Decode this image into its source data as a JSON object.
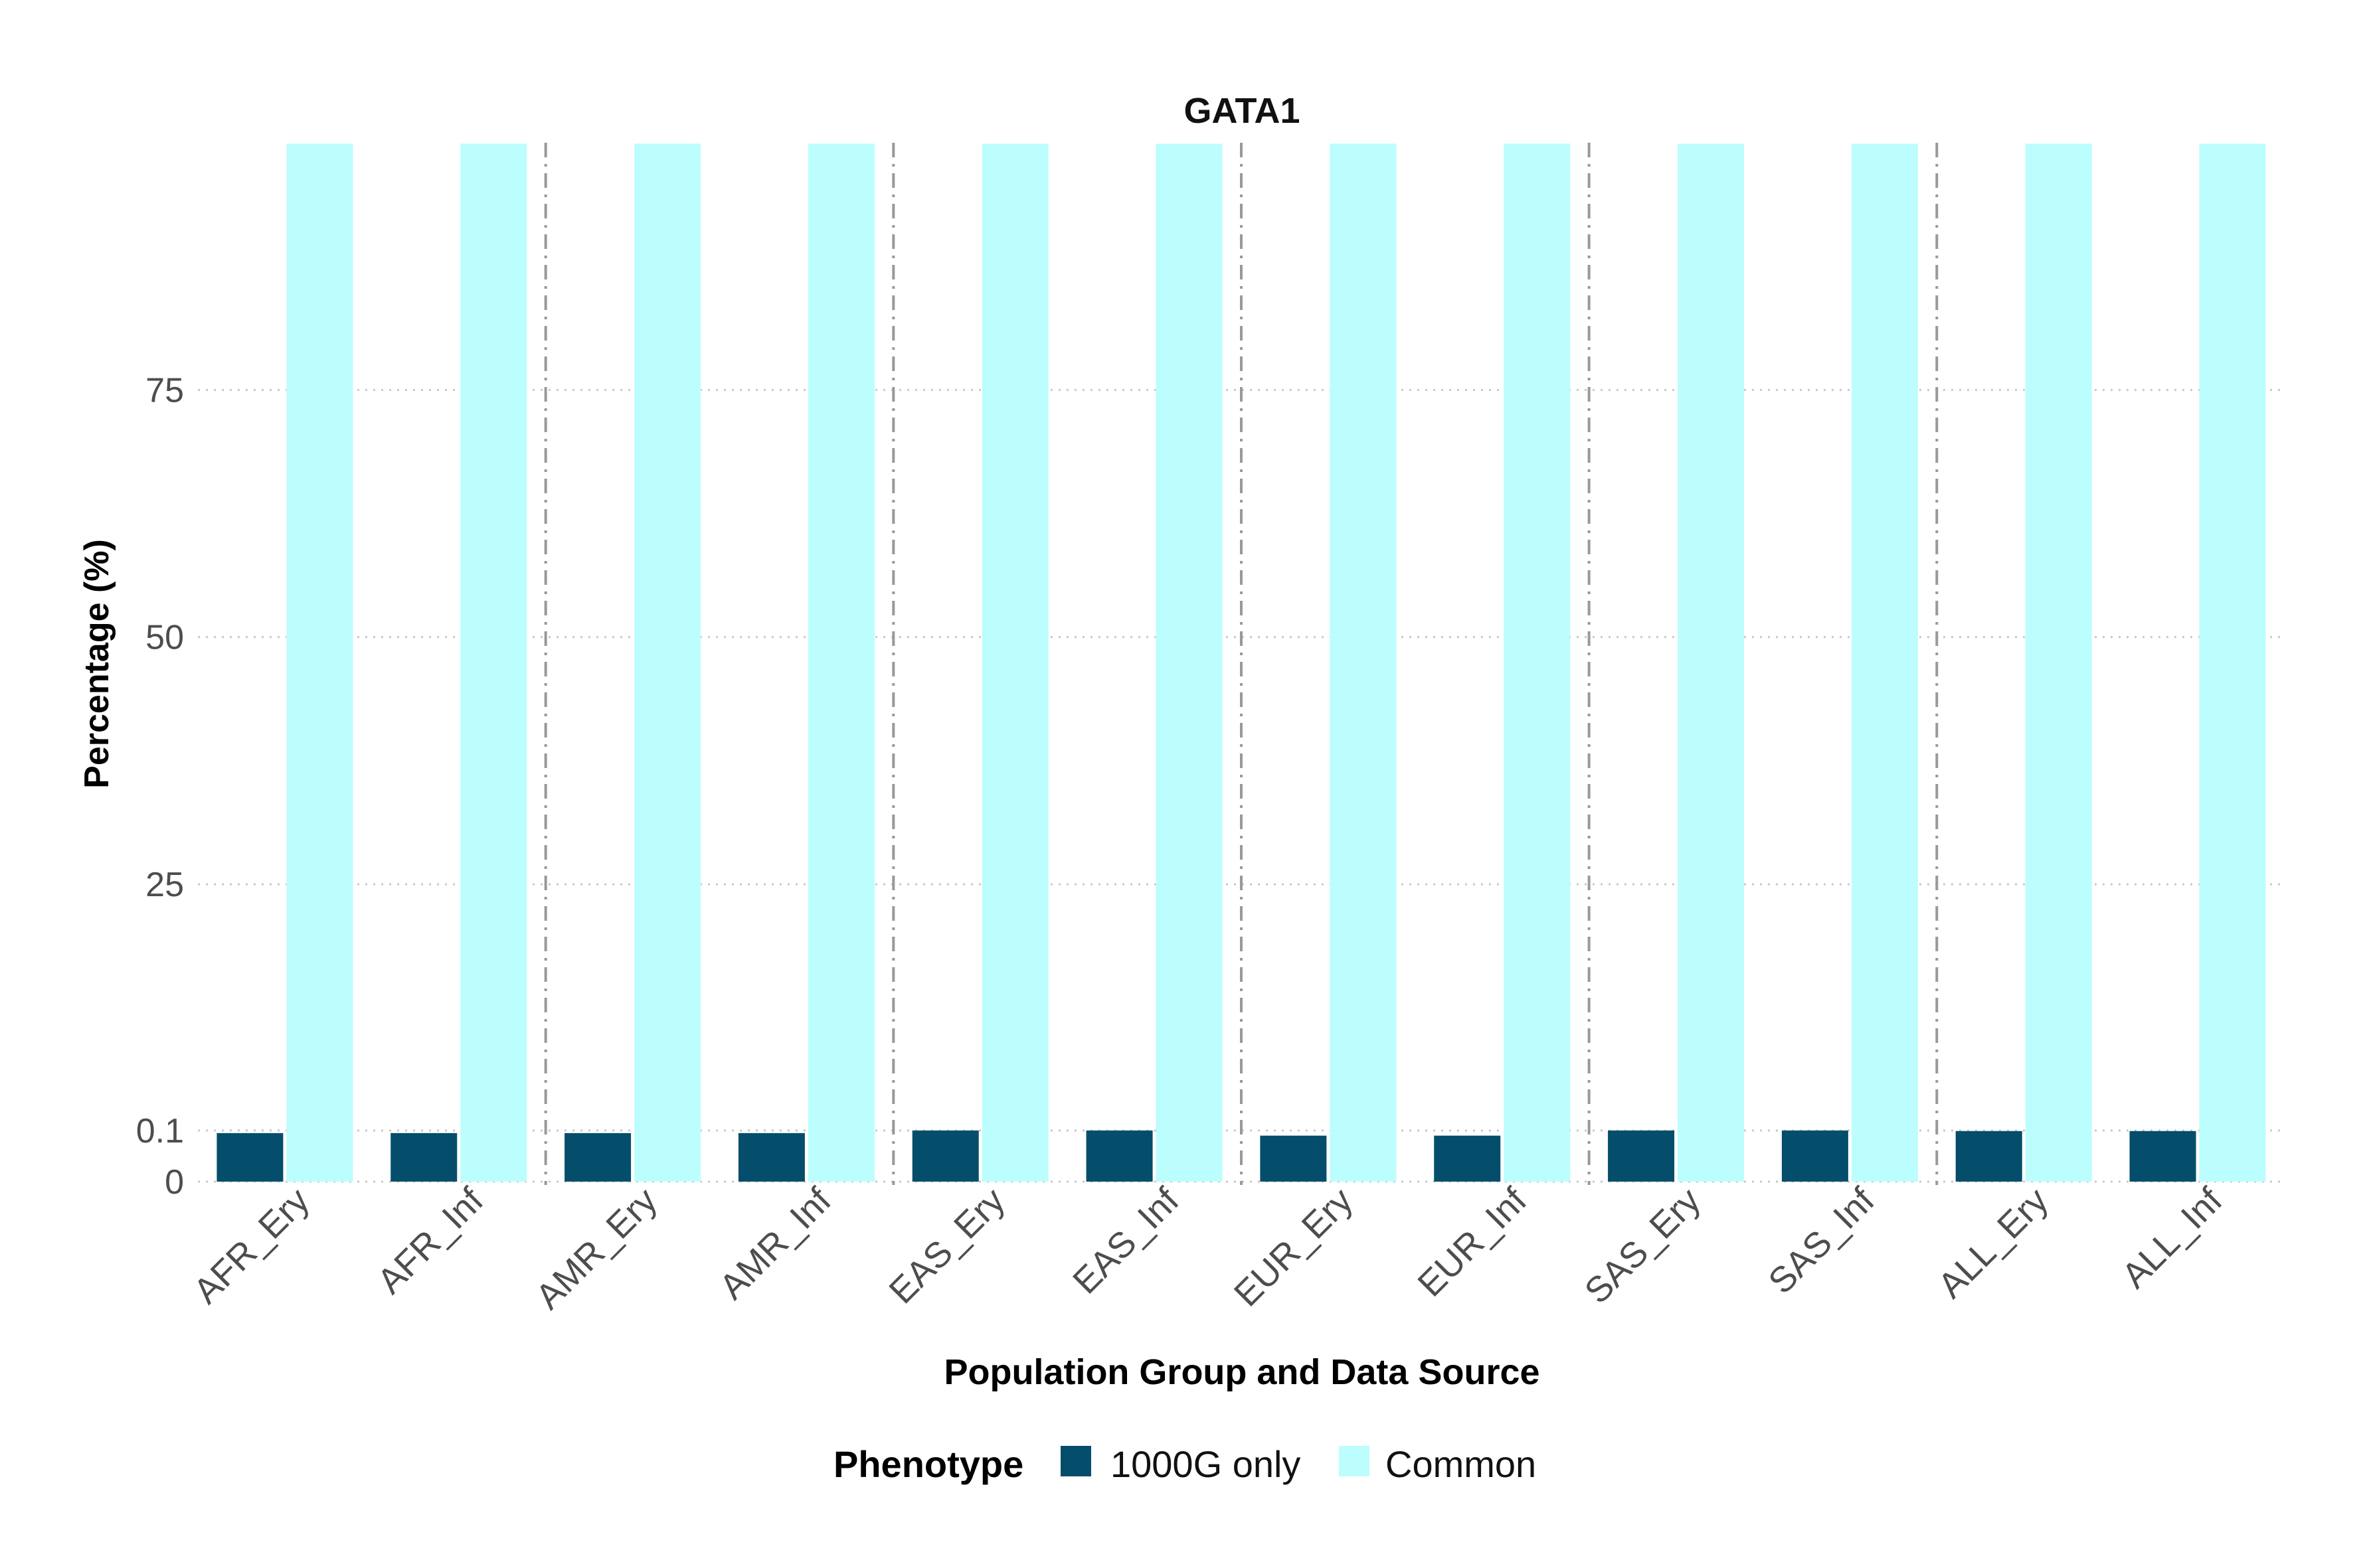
{
  "chart_data": {
    "type": "bar",
    "title": "GATA1",
    "xlabel": "Population Group and Data Source",
    "ylabel": "Percentage (%)",
    "categories": [
      "AFR_Ery",
      "AFR_Inf",
      "AMR_Ery",
      "AMR_Inf",
      "EAS_Ery",
      "EAS_Inf",
      "EUR_Ery",
      "EUR_Inf",
      "SAS_Ery",
      "SAS_Inf",
      "ALL_Ery",
      "ALL_Inf"
    ],
    "series": [
      {
        "name": "1000G only",
        "color": "#044e6b",
        "values": [
          0.095,
          0.095,
          0.095,
          0.095,
          0.106,
          0.106,
          0.09,
          0.09,
          0.105,
          0.105,
          0.099,
          0.099
        ]
      },
      {
        "name": "Common",
        "color": "#bcfdfd",
        "values": [
          99.905,
          99.905,
          99.905,
          99.905,
          99.894,
          99.894,
          99.91,
          99.91,
          99.895,
          99.895,
          99.901,
          99.901
        ]
      }
    ],
    "y_ticks": [
      "0",
      "0.1",
      "25",
      "50",
      "75"
    ],
    "y_scale": "piecewise (0–0.1 expanded, then linear to 100)",
    "grid": "horizontal dotted",
    "group_separators": "dash-dot vertical lines between population groups",
    "legend": {
      "title": "Phenotype",
      "placement": "bottom",
      "items": [
        "1000G only",
        "Common"
      ]
    }
  }
}
